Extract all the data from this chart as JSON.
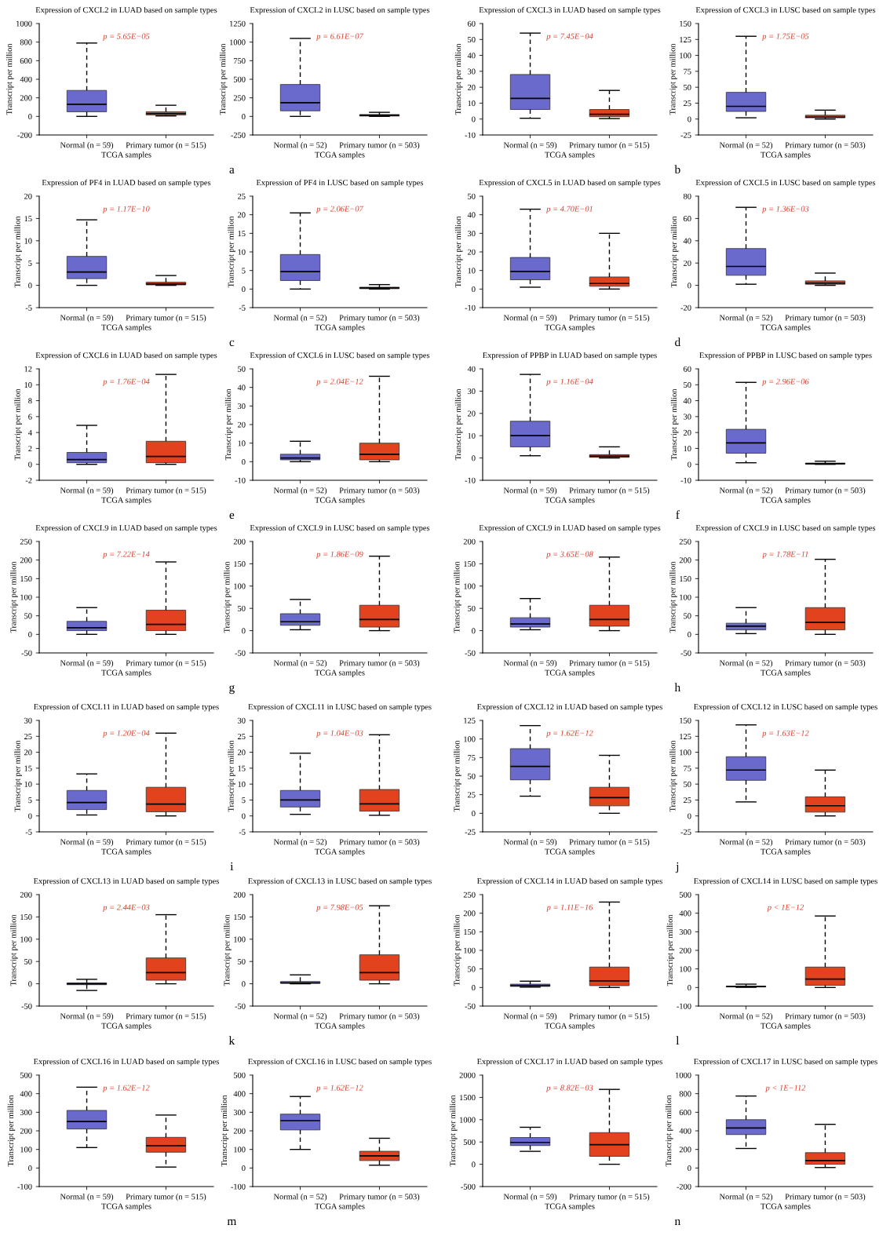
{
  "chart_data": [
    {
      "type": "box",
      "title": "Expression of CXCL2 in LUAD based on sample types",
      "xlabel": "TCGA samples",
      "ylabel": "Transcript per million",
      "categories": [
        "Normal (n = 59)",
        "Primary tumor (n = 515)"
      ],
      "colors": [
        "#6a6acd",
        "#e2431e"
      ],
      "boxes": [
        {
          "low": 0,
          "q1": 50,
          "median": 130,
          "q3": 280,
          "high": 790
        },
        {
          "low": 5,
          "q1": 15,
          "median": 30,
          "q3": 50,
          "high": 120
        }
      ],
      "ylim": [
        -200,
        1000
      ],
      "yticks": [
        -200,
        0,
        200,
        400,
        600,
        800,
        1000
      ],
      "annotations": [
        "p = 5.65E−05"
      ]
    },
    {
      "type": "box",
      "title": "Expression of CXCL2 in LUSC based on sample types",
      "xlabel": "TCGA samples",
      "ylabel": "Transcript per million",
      "categories": [
        "Normal (n = 52)",
        "Primary tumor (n = 503)"
      ],
      "colors": [
        "#6a6acd",
        "#e2431e"
      ],
      "boxes": [
        {
          "low": 0,
          "q1": 75,
          "median": 185,
          "q3": 430,
          "high": 1050
        },
        {
          "low": 0,
          "q1": 5,
          "median": 15,
          "q3": 25,
          "high": 55
        }
      ],
      "ylim": [
        -250,
        1250
      ],
      "yticks": [
        -250,
        0,
        250,
        500,
        750,
        1000,
        1250
      ],
      "annotations": [
        "p = 6.61E−07",
        "a"
      ]
    },
    {
      "type": "box",
      "title": "Expression of CXCL3 in LUAD based on sample types",
      "xlabel": "TCGA samples",
      "ylabel": "Transcript per million",
      "categories": [
        "Normal (n = 59)",
        "Primary tumor (n = 515)"
      ],
      "colors": [
        "#6a6acd",
        "#e2431e"
      ],
      "boxes": [
        {
          "low": 0.5,
          "q1": 6,
          "median": 13,
          "q3": 28,
          "high": 54
        },
        {
          "low": 0.3,
          "q1": 1.5,
          "median": 3,
          "q3": 6,
          "high": 18
        }
      ],
      "ylim": [
        -10,
        60
      ],
      "yticks": [
        -10,
        0,
        10,
        20,
        30,
        40,
        50,
        60
      ],
      "annotations": [
        "p = 7.45E−04"
      ]
    },
    {
      "type": "box",
      "title": "Expression of CXCL3 in LUSC based on sample types",
      "xlabel": "TCGA samples",
      "ylabel": "Transcript per million",
      "categories": [
        "Normal (n = 52)",
        "Primary tumor (n = 503)"
      ],
      "colors": [
        "#6a6acd",
        "#e2431e"
      ],
      "boxes": [
        {
          "low": 2,
          "q1": 12,
          "median": 20,
          "q3": 42,
          "high": 130
        },
        {
          "low": 0,
          "q1": 2,
          "median": 3,
          "q3": 6,
          "high": 14
        }
      ],
      "ylim": [
        -25,
        150
      ],
      "yticks": [
        -25,
        0,
        25,
        50,
        75,
        100,
        125,
        150
      ],
      "annotations": [
        "p = 1.75E−05",
        "b"
      ]
    },
    {
      "type": "box",
      "title": "Expression of PF4 in LUAD based on sample types",
      "xlabel": "TCGA samples",
      "ylabel": "Transcript per million",
      "categories": [
        "Normal (n = 59)",
        "Primary tumor (n = 515)"
      ],
      "colors": [
        "#6a6acd",
        "#e2431e"
      ],
      "boxes": [
        {
          "low": 0,
          "q1": 1.5,
          "median": 3,
          "q3": 6.5,
          "high": 14.7
        },
        {
          "low": 0,
          "q1": 0.1,
          "median": 0.3,
          "q3": 0.7,
          "high": 2.2
        }
      ],
      "ylim": [
        -5,
        20
      ],
      "yticks": [
        -5,
        0,
        5,
        10,
        15,
        20
      ],
      "annotations": [
        "p = 1.17E−10"
      ]
    },
    {
      "type": "box",
      "title": "Expression of PF4 in LUSC based on sample types",
      "xlabel": "TCGA samples",
      "ylabel": "Transcript per million",
      "categories": [
        "Normal (n = 52)",
        "Primary tumor (n = 503)"
      ],
      "colors": [
        "#6a6acd",
        "#e2431e"
      ],
      "boxes": [
        {
          "low": 0,
          "q1": 2.3,
          "median": 4.7,
          "q3": 9.3,
          "high": 20.5
        },
        {
          "low": 0,
          "q1": 0.1,
          "median": 0.3,
          "q3": 0.5,
          "high": 1.2
        }
      ],
      "ylim": [
        -5,
        25
      ],
      "yticks": [
        -5,
        0,
        5,
        10,
        15,
        20,
        25
      ],
      "annotations": [
        "p = 2.06E−07",
        "c"
      ]
    },
    {
      "type": "box",
      "title": "Expression of CXCL5 in LUAD based on sample types",
      "xlabel": "TCGA samples",
      "ylabel": "Transcript per million",
      "categories": [
        "Normal (n = 59)",
        "Primary tumor (n = 515)"
      ],
      "colors": [
        "#6a6acd",
        "#e2431e"
      ],
      "boxes": [
        {
          "low": 1,
          "q1": 5,
          "median": 9.5,
          "q3": 17,
          "high": 43
        },
        {
          "low": 0,
          "q1": 1.5,
          "median": 3,
          "q3": 6.5,
          "high": 30
        }
      ],
      "ylim": [
        -10,
        50
      ],
      "yticks": [
        -10,
        0,
        10,
        20,
        30,
        40,
        50
      ],
      "annotations": [
        "p = 4.70E−01"
      ]
    },
    {
      "type": "box",
      "title": "Expression of CXCL5 in LUSC based on sample types",
      "xlabel": "TCGA samples",
      "ylabel": "Transcript per million",
      "categories": [
        "Normal (n = 52)",
        "Primary tumor (n = 503)"
      ],
      "colors": [
        "#6a6acd",
        "#e2431e"
      ],
      "boxes": [
        {
          "low": 1,
          "q1": 9,
          "median": 17,
          "q3": 33,
          "high": 70
        },
        {
          "low": 0,
          "q1": 1,
          "median": 2,
          "q3": 4,
          "high": 11
        }
      ],
      "ylim": [
        -20,
        80
      ],
      "yticks": [
        -20,
        0,
        20,
        40,
        60,
        80
      ],
      "annotations": [
        "p = 1.36E−03",
        "d"
      ]
    },
    {
      "type": "box",
      "title": "Expression of CXCL6 in LUAD based on sample types",
      "xlabel": "TCGA samples",
      "ylabel": "Transcript per million",
      "categories": [
        "Normal (n = 59)",
        "Primary tumor (n = 515)"
      ],
      "colors": [
        "#6a6acd",
        "#e2431e"
      ],
      "boxes": [
        {
          "low": 0,
          "q1": 0.2,
          "median": 0.6,
          "q3": 1.5,
          "high": 4.9
        },
        {
          "low": 0,
          "q1": 0.2,
          "median": 1,
          "q3": 2.9,
          "high": 11.3
        }
      ],
      "ylim": [
        -2,
        12
      ],
      "yticks": [
        -2,
        0,
        2,
        4,
        6,
        8,
        10,
        12
      ],
      "annotations": [
        "p = 1.76E−04"
      ]
    },
    {
      "type": "box",
      "title": "Expression of CXCL6 in LUSC based on sample types",
      "xlabel": "TCGA samples",
      "ylabel": "Transcript per million",
      "categories": [
        "Normal (n = 52)",
        "Primary tumor (n = 503)"
      ],
      "colors": [
        "#6a6acd",
        "#e2431e"
      ],
      "boxes": [
        {
          "low": 0,
          "q1": 1,
          "median": 2,
          "q3": 4,
          "high": 11
        },
        {
          "low": 0,
          "q1": 1,
          "median": 4,
          "q3": 10,
          "high": 46
        }
      ],
      "ylim": [
        -10,
        50
      ],
      "yticks": [
        -10,
        0,
        10,
        20,
        30,
        40,
        50
      ],
      "annotations": [
        "p = 2.04E−12",
        "e"
      ]
    },
    {
      "type": "box",
      "title": "Expression of PPBP in LUAD based on sample types",
      "xlabel": "TCGA samples",
      "ylabel": "Transcript per million",
      "categories": [
        "Normal (n = 59)",
        "Primary tumor (n = 515)"
      ],
      "colors": [
        "#6a6acd",
        "#e2431e"
      ],
      "boxes": [
        {
          "low": 1,
          "q1": 5,
          "median": 10,
          "q3": 16.5,
          "high": 37.5
        },
        {
          "low": 0,
          "q1": 0.3,
          "median": 0.8,
          "q3": 1.5,
          "high": 5
        }
      ],
      "ylim": [
        -10,
        40
      ],
      "yticks": [
        -10,
        0,
        10,
        20,
        30,
        40
      ],
      "annotations": [
        "p = 1.16E−04"
      ]
    },
    {
      "type": "box",
      "title": "Expression of PPBP in LUSC based on sample types",
      "xlabel": "TCGA samples",
      "ylabel": "Transcript per million",
      "categories": [
        "Normal (n = 52)",
        "Primary tumor (n = 503)"
      ],
      "colors": [
        "#6a6acd",
        "#e2431e"
      ],
      "boxes": [
        {
          "low": 1,
          "q1": 7,
          "median": 13.5,
          "q3": 22,
          "high": 51.5
        },
        {
          "low": 0,
          "q1": 0.2,
          "median": 0.4,
          "q3": 0.8,
          "high": 2
        }
      ],
      "ylim": [
        -10,
        60
      ],
      "yticks": [
        -10,
        0,
        10,
        20,
        30,
        40,
        50,
        60
      ],
      "annotations": [
        "p = 2.96E−06",
        "f"
      ]
    },
    {
      "type": "box",
      "title": "Expression of CXCL9 in LUAD based on sample types",
      "xlabel": "TCGA samples",
      "ylabel": "Transcript per million",
      "categories": [
        "Normal (n = 59)",
        "Primary tumor (n = 515)"
      ],
      "colors": [
        "#6a6acd",
        "#e2431e"
      ],
      "boxes": [
        {
          "low": 0,
          "q1": 10,
          "median": 18,
          "q3": 35,
          "high": 72
        },
        {
          "low": 0,
          "q1": 10,
          "median": 27,
          "q3": 65,
          "high": 195
        }
      ],
      "ylim": [
        -50,
        250
      ],
      "yticks": [
        -50,
        0,
        50,
        100,
        150,
        200,
        250
      ],
      "annotations": [
        "p = 7.22E−14"
      ]
    },
    {
      "type": "box",
      "title": "Expression of CXCL9 in LUSC based on sample types",
      "xlabel": "TCGA samples",
      "ylabel": "Transcript per million",
      "categories": [
        "Normal (n = 52)",
        "Primary tumor (n = 503)"
      ],
      "colors": [
        "#6a6acd",
        "#e2431e"
      ],
      "boxes": [
        {
          "low": 2,
          "q1": 12,
          "median": 20,
          "q3": 38,
          "high": 70
        },
        {
          "low": 0,
          "q1": 8,
          "median": 25,
          "q3": 57,
          "high": 167
        }
      ],
      "ylim": [
        -50,
        200
      ],
      "yticks": [
        -50,
        0,
        50,
        100,
        150,
        200
      ],
      "annotations": [
        "p = 1.86E−09",
        "g"
      ]
    },
    {
      "type": "box",
      "title": "Expression of CXCL9 in LUAD based on sample types",
      "xlabel": "TCGA samples",
      "ylabel": "Transcript per million",
      "categories": [
        "Normal (n = 59)",
        "Primary tumor (n = 515)"
      ],
      "colors": [
        "#6a6acd",
        "#e2431e"
      ],
      "boxes": [
        {
          "low": 2,
          "q1": 8,
          "median": 15,
          "q3": 29,
          "high": 72
        },
        {
          "low": 0,
          "q1": 10,
          "median": 25,
          "q3": 57,
          "high": 165
        }
      ],
      "ylim": [
        -50,
        200
      ],
      "yticks": [
        -50,
        0,
        50,
        100,
        150,
        200
      ],
      "annotations": [
        "p = 3.65E−08"
      ]
    },
    {
      "type": "box",
      "title": "Expression of CXCL9 in LUSC based on sample types",
      "xlabel": "TCGA samples",
      "ylabel": "Transcript per million",
      "categories": [
        "Normal (n = 52)",
        "Primary tumor (n = 503)"
      ],
      "colors": [
        "#6a6acd",
        "#e2431e"
      ],
      "boxes": [
        {
          "low": 2,
          "q1": 12,
          "median": 22,
          "q3": 30,
          "high": 72
        },
        {
          "low": 0,
          "q1": 12,
          "median": 32,
          "q3": 72,
          "high": 202
        }
      ],
      "ylim": [
        -50,
        250
      ],
      "yticks": [
        -50,
        0,
        50,
        100,
        150,
        200,
        250
      ],
      "annotations": [
        "p = 1.78E−11",
        "h"
      ]
    },
    {
      "type": "box",
      "title": "Expression of CXCL11 in LUAD based on sample types",
      "xlabel": "TCGA samples",
      "ylabel": "Transcript per million",
      "categories": [
        "Normal (n = 59)",
        "Primary tumor (n = 515)"
      ],
      "colors": [
        "#6a6acd",
        "#e2431e"
      ],
      "boxes": [
        {
          "low": 0.3,
          "q1": 2,
          "median": 4.2,
          "q3": 8,
          "high": 13.2
        },
        {
          "low": 0,
          "q1": 1.3,
          "median": 3.7,
          "q3": 9,
          "high": 26
        }
      ],
      "ylim": [
        -5,
        30
      ],
      "yticks": [
        -5,
        0,
        5,
        10,
        15,
        20,
        25,
        30
      ],
      "annotations": [
        "p = 1.20E−04"
      ]
    },
    {
      "type": "box",
      "title": "Expression of CXCL11 in LUSC based on sample types",
      "xlabel": "TCGA samples",
      "ylabel": "Transcript per million",
      "categories": [
        "Normal (n = 52)",
        "Primary tumor (n = 503)"
      ],
      "colors": [
        "#6a6acd",
        "#e2431e"
      ],
      "boxes": [
        {
          "low": 0.5,
          "q1": 2.8,
          "median": 5,
          "q3": 8,
          "high": 19.7
        },
        {
          "low": 0.2,
          "q1": 1.5,
          "median": 3.8,
          "q3": 8.3,
          "high": 25.5
        }
      ],
      "ylim": [
        -5,
        30
      ],
      "yticks": [
        -5,
        0,
        5,
        10,
        15,
        20,
        25,
        30
      ],
      "annotations": [
        "p = 1.04E−03",
        "i"
      ]
    },
    {
      "type": "box",
      "title": "Expression of CXCL12 in LUAD based on sample types",
      "xlabel": "TCGA samples",
      "ylabel": "Transcript per million",
      "categories": [
        "Normal (n = 59)",
        "Primary tumor (n = 515)"
      ],
      "colors": [
        "#6a6acd",
        "#e2431e"
      ],
      "boxes": [
        {
          "low": 23,
          "q1": 45,
          "median": 63,
          "q3": 87,
          "high": 118
        },
        {
          "low": 0,
          "q1": 10,
          "median": 21,
          "q3": 35,
          "high": 78
        }
      ],
      "ylim": [
        -25,
        125
      ],
      "yticks": [
        -25,
        0,
        25,
        50,
        75,
        100,
        125
      ],
      "annotations": [
        "p = 1.62E−12"
      ]
    },
    {
      "type": "box",
      "title": "Expression of CXCL12 in LUSC based on sample types",
      "xlabel": "TCGA samples",
      "ylabel": "Transcript per million",
      "categories": [
        "Normal (n = 52)",
        "Primary tumor (n = 503)"
      ],
      "colors": [
        "#6a6acd",
        "#e2431e"
      ],
      "boxes": [
        {
          "low": 22,
          "q1": 56,
          "median": 72,
          "q3": 93,
          "high": 143
        },
        {
          "low": 0,
          "q1": 6,
          "median": 16,
          "q3": 30,
          "high": 72
        }
      ],
      "ylim": [
        -25,
        150
      ],
      "yticks": [
        -25,
        0,
        25,
        50,
        75,
        100,
        125,
        150
      ],
      "annotations": [
        "p = 1.63E−12",
        "j"
      ]
    },
    {
      "type": "box",
      "title": "Expression of CXCL13 in LUAD based on sample types",
      "xlabel": "TCGA samples",
      "ylabel": "Transcript per million",
      "categories": [
        "Normal (n = 59)",
        "Primary tumor (n = 515)"
      ],
      "colors": [
        "#6a6acd",
        "#e2431e"
      ],
      "boxes": [
        {
          "low": -15,
          "q1": -2,
          "median": 0,
          "q3": 2,
          "high": 10
        },
        {
          "low": 0,
          "q1": 8,
          "median": 25,
          "q3": 58,
          "high": 155
        }
      ],
      "ylim": [
        -50,
        200
      ],
      "yticks": [
        -50,
        0,
        50,
        100,
        150,
        200
      ],
      "annotations": [
        "p = 2.44E−03"
      ]
    },
    {
      "type": "box",
      "title": "Expression of CXCL13 in LUSC based on sample types",
      "xlabel": "TCGA samples",
      "ylabel": "Transcript per million",
      "categories": [
        "Normal (n = 52)",
        "Primary tumor (n = 503)"
      ],
      "colors": [
        "#6a6acd",
        "#e2431e"
      ],
      "boxes": [
        {
          "low": 0,
          "q1": 1,
          "median": 2,
          "q3": 5,
          "high": 20
        },
        {
          "low": 0,
          "q1": 8,
          "median": 25,
          "q3": 65,
          "high": 175
        }
      ],
      "ylim": [
        -50,
        200
      ],
      "yticks": [
        -50,
        0,
        50,
        100,
        150,
        200
      ],
      "annotations": [
        "p = 7.98E−05",
        "k"
      ]
    },
    {
      "type": "box",
      "title": "Expression of CXCL14 in LUAD based on sample types",
      "xlabel": "TCGA samples",
      "ylabel": "Transcript per million",
      "categories": [
        "Normal (n = 59)",
        "Primary tumor (n = 515)"
      ],
      "colors": [
        "#6a6acd",
        "#e2431e"
      ],
      "boxes": [
        {
          "low": 1,
          "q1": 3,
          "median": 5,
          "q3": 9,
          "high": 17
        },
        {
          "low": 0,
          "q1": 5,
          "median": 18,
          "q3": 55,
          "high": 230
        }
      ],
      "ylim": [
        -50,
        250
      ],
      "yticks": [
        -50,
        0,
        50,
        100,
        150,
        200,
        250
      ],
      "annotations": [
        "p = 1.11E−16"
      ]
    },
    {
      "type": "box",
      "title": "Expression of CXCL14 in LUSC based on sample types",
      "xlabel": "TCGA samples",
      "ylabel": "Transcript per million",
      "categories": [
        "Normal (n = 52)",
        "Primary tumor (n = 503)"
      ],
      "colors": [
        "#6a6acd",
        "#e2431e"
      ],
      "boxes": [
        {
          "low": 1,
          "q1": 3,
          "median": 5,
          "q3": 7,
          "high": 18
        },
        {
          "low": 0,
          "q1": 12,
          "median": 45,
          "q3": 110,
          "high": 385
        }
      ],
      "ylim": [
        -100,
        500
      ],
      "yticks": [
        -100,
        0,
        100,
        200,
        300,
        400,
        500
      ],
      "annotations": [
        "p < 1E−12",
        "l"
      ]
    },
    {
      "type": "box",
      "title": "Expression of CXCL16 in LUAD based on sample types",
      "xlabel": "TCGA samples",
      "ylabel": "Transcript per million",
      "categories": [
        "Normal (n = 59)",
        "Primary tumor (n = 515)"
      ],
      "colors": [
        "#6a6acd",
        "#e2431e"
      ],
      "boxes": [
        {
          "low": 110,
          "q1": 210,
          "median": 250,
          "q3": 310,
          "high": 435
        },
        {
          "low": 5,
          "q1": 85,
          "median": 120,
          "q3": 165,
          "high": 285
        }
      ],
      "ylim": [
        -100,
        500
      ],
      "yticks": [
        -100,
        0,
        100,
        200,
        300,
        400,
        500
      ],
      "annotations": [
        "p = 1.62E−12"
      ]
    },
    {
      "type": "box",
      "title": "Expression of CXCL16 in LUSC based on sample types",
      "xlabel": "TCGA samples",
      "ylabel": "Transcript per million",
      "categories": [
        "Normal (n = 52)",
        "Primary tumor (n = 503)"
      ],
      "colors": [
        "#6a6acd",
        "#e2431e"
      ],
      "boxes": [
        {
          "low": 100,
          "q1": 205,
          "median": 255,
          "q3": 290,
          "high": 385
        },
        {
          "low": 15,
          "q1": 40,
          "median": 65,
          "q3": 90,
          "high": 160
        }
      ],
      "ylim": [
        -100,
        500
      ],
      "yticks": [
        -100,
        0,
        100,
        200,
        300,
        400,
        500
      ],
      "annotations": [
        "p = 1.62E−12",
        "m"
      ]
    },
    {
      "type": "box",
      "title": "Expression of CXCL17 in LUAD based on sample types",
      "xlabel": "TCGA samples",
      "ylabel": "Transcript per million",
      "categories": [
        "Normal (n = 59)",
        "Primary tumor (n = 515)"
      ],
      "colors": [
        "#6a6acd",
        "#e2431e"
      ],
      "boxes": [
        {
          "low": 290,
          "q1": 420,
          "median": 490,
          "q3": 600,
          "high": 830
        },
        {
          "low": 0,
          "q1": 180,
          "median": 440,
          "q3": 710,
          "high": 1680
        }
      ],
      "ylim": [
        -500,
        2000
      ],
      "yticks": [
        -500,
        0,
        500,
        1000,
        1500,
        2000
      ],
      "annotations": [
        "p = 8.82E−03"
      ]
    },
    {
      "type": "box",
      "title": "Expression of CXCL17 in LUSC based on sample types",
      "xlabel": "TCGA samples",
      "ylabel": "Transcript per million",
      "categories": [
        "Normal (n = 52)",
        "Primary tumor (n = 503)"
      ],
      "colors": [
        "#6a6acd",
        "#e2431e"
      ],
      "boxes": [
        {
          "low": 210,
          "q1": 360,
          "median": 430,
          "q3": 520,
          "high": 775
        },
        {
          "low": 5,
          "q1": 40,
          "median": 80,
          "q3": 165,
          "high": 470
        }
      ],
      "ylim": [
        -200,
        1000
      ],
      "yticks": [
        -200,
        0,
        200,
        400,
        600,
        800,
        1000
      ],
      "annotations": [
        "p < 1E−112",
        "n"
      ]
    }
  ]
}
